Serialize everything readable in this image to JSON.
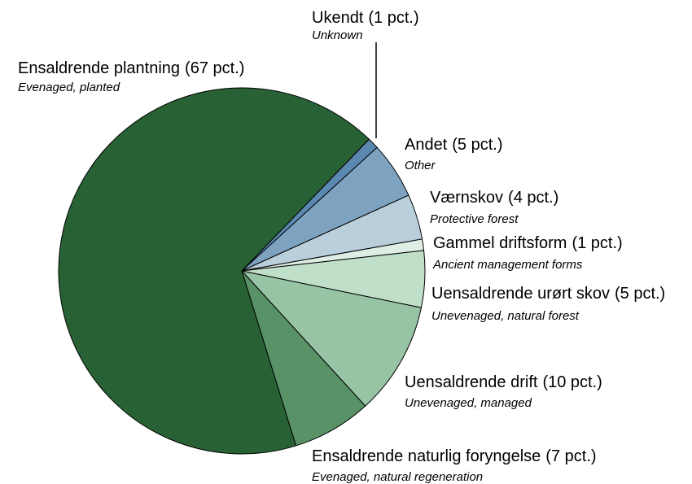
{
  "chart_data": {
    "type": "pie",
    "categories": [
      "Ukendt",
      "Andet",
      "Værnskov",
      "Gammel driftsform",
      "Uensaldrende urørt skov",
      "Uensaldrende drift",
      "Ensaldrende naturlig foryngelse",
      "Ensaldrende plantning"
    ],
    "values": [
      1,
      5,
      4,
      1,
      5,
      10,
      7,
      67
    ],
    "value_labels": [
      "(1 pct.)",
      "(5 pct.)",
      "(4 pct.)",
      "(1 pct.)",
      "(5 pct.)",
      "(10 pct.)",
      "(7 pct.)",
      "(67 pct.)"
    ],
    "sublabels": [
      "Unknown",
      "Other",
      "Protective forest",
      "Ancient management forms",
      "Unevenaged, natural forest",
      "Unevenaged, managed",
      "Evenaged, natural regeneration",
      "Evenaged, planted"
    ],
    "colors": [
      "#5b88b0",
      "#7ea3c0",
      "#b9cfdc",
      "#dfeee5",
      "#c0dfc9",
      "#97c4a4",
      "#5a9268",
      "#286234"
    ]
  }
}
